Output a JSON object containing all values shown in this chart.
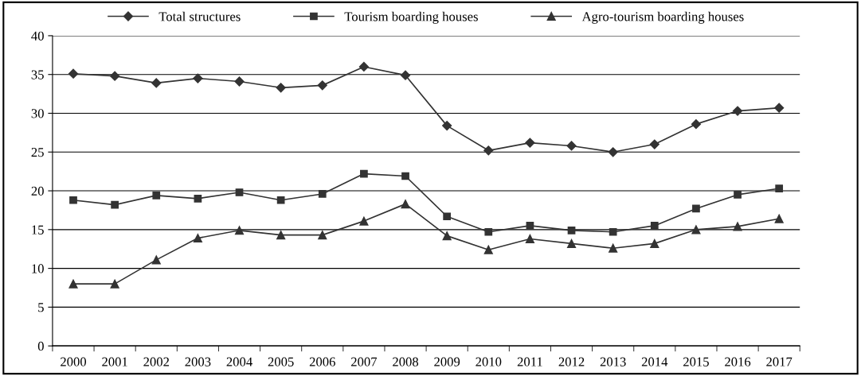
{
  "chart_data": {
    "type": "line",
    "categories": [
      "2000",
      "2001",
      "2002",
      "2003",
      "2004",
      "2005",
      "2006",
      "2007",
      "2008",
      "2009",
      "2010",
      "2011",
      "2012",
      "2013",
      "2014",
      "2015",
      "2016",
      "2017"
    ],
    "ylim": [
      0,
      40
    ],
    "yticks": [
      0,
      5,
      10,
      15,
      20,
      25,
      30,
      35,
      40
    ],
    "grid": "y",
    "legend": "top",
    "line_style": "solid",
    "series": [
      {
        "name": "Total structures",
        "color": "#333333",
        "marker": "diamond",
        "values": [
          35.1,
          34.8,
          33.9,
          34.5,
          34.1,
          33.3,
          33.6,
          36.0,
          34.9,
          28.4,
          25.2,
          26.2,
          25.8,
          25.0,
          26.0,
          28.6,
          30.3,
          30.7
        ]
      },
      {
        "name": "Tourism boarding houses",
        "color": "#333333",
        "marker": "square",
        "values": [
          18.8,
          18.2,
          19.4,
          19.0,
          19.8,
          18.8,
          19.6,
          22.2,
          21.9,
          16.7,
          14.7,
          15.5,
          14.9,
          14.7,
          15.5,
          17.7,
          19.5,
          20.3
        ]
      },
      {
        "name": "Agro-tourism boarding houses",
        "color": "#333333",
        "marker": "triangle",
        "values": [
          8.0,
          8.0,
          11.1,
          13.9,
          14.9,
          14.3,
          14.3,
          16.1,
          18.3,
          14.2,
          12.4,
          13.8,
          13.2,
          12.6,
          13.2,
          15.0,
          15.4,
          16.4
        ]
      }
    ]
  }
}
